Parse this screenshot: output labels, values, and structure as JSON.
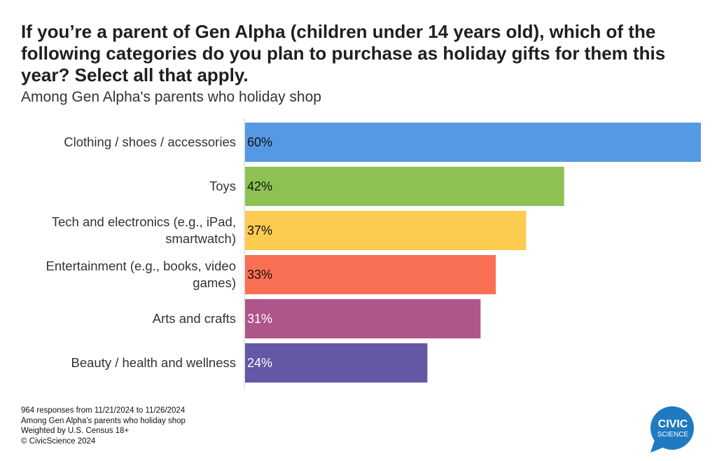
{
  "chart_data": {
    "type": "bar",
    "orientation": "horizontal",
    "title": "If you’re a parent of Gen Alpha (children under 14 years old), which of the following categories do you plan to purchase as holiday gifts for them this year? Select all that apply.",
    "subtitle": "Among Gen Alpha's parents who holiday shop",
    "categories": [
      [
        "Clothing / shoes / accessories"
      ],
      [
        "Toys"
      ],
      [
        "Tech and electronics (e.g., iPad,",
        "smartwatch)"
      ],
      [
        "Entertainment (e.g., books, video",
        "games)"
      ],
      [
        "Arts and crafts"
      ],
      [
        "Beauty / health and wellness"
      ]
    ],
    "values": [
      60,
      42,
      37,
      33,
      31,
      24
    ],
    "value_labels": [
      "60%",
      "42%",
      "37%",
      "33%",
      "31%",
      "24%"
    ],
    "bar_colors": [
      "#5699e3",
      "#8dc153",
      "#fccb50",
      "#f96f53",
      "#ae5689",
      "#6258a6"
    ],
    "label_colors": [
      "#111111",
      "#111111",
      "#111111",
      "#111111",
      "#ffffff",
      "#ffffff"
    ],
    "xlim": [
      0,
      60
    ],
    "grid": false,
    "legend": false
  },
  "footer": {
    "lines": [
      "964 responses from 11/21/2024 to 11/26/2024",
      "Among Gen Alpha's parents who holiday shop",
      "Weighted by U.S. Census 18+",
      "© CivicScience 2024"
    ]
  },
  "logo": {
    "line1": "CIVIC",
    "line2": "SCIENCE",
    "color": "#1f7ac2"
  }
}
